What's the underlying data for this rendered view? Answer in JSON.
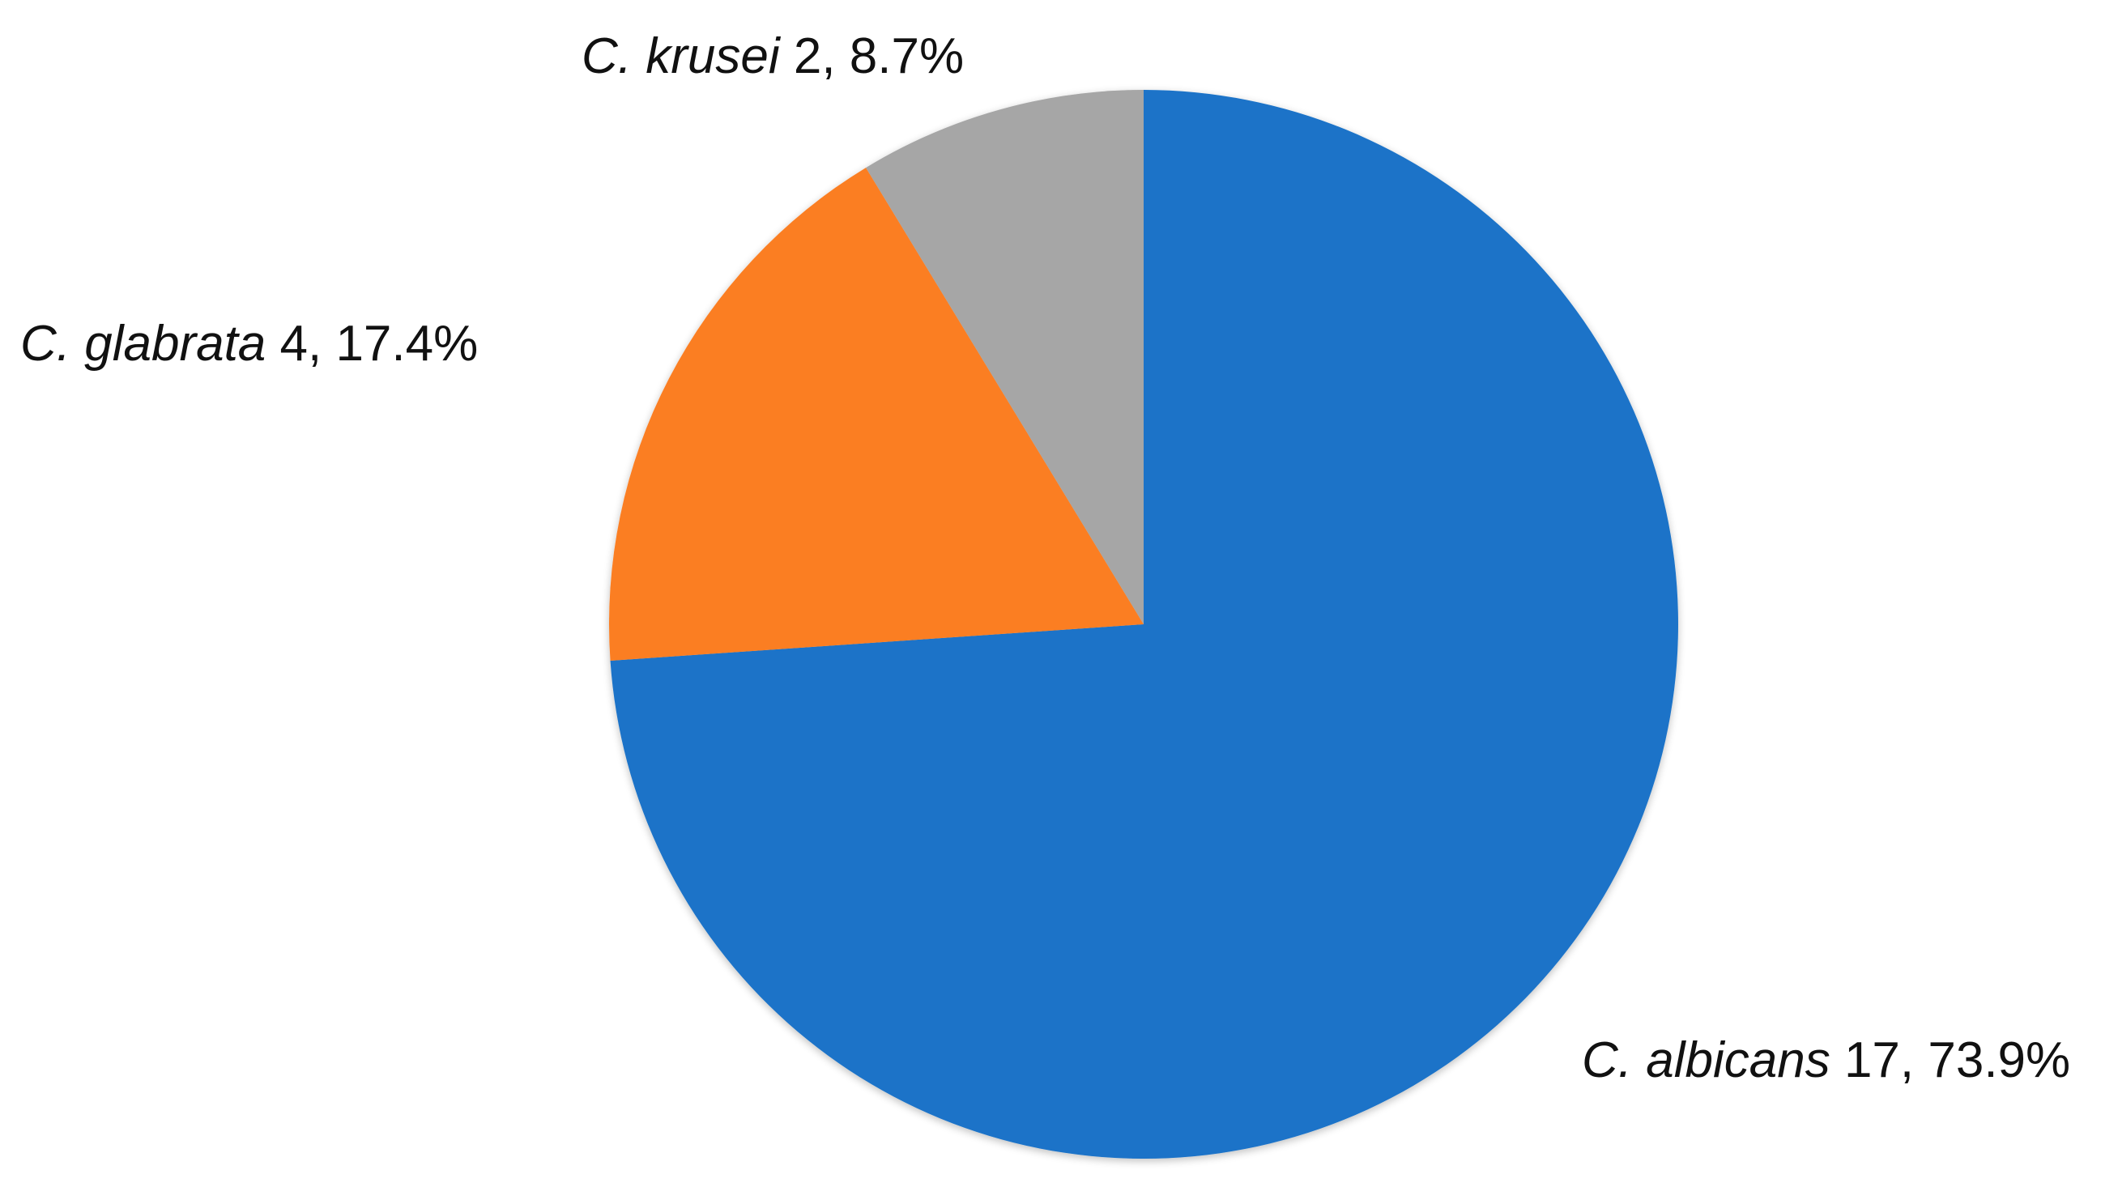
{
  "chart_data": {
    "type": "pie",
    "title": "",
    "slices": [
      {
        "species": "C. albicans",
        "count": 17,
        "count_text": "17",
        "percent_text": "73.9%",
        "color": "#1a73c8"
      },
      {
        "species": "C. glabrata",
        "count": 4,
        "count_text": "4",
        "percent_text": "17.4%",
        "color": "#fb7e23"
      },
      {
        "species": "C. krusei",
        "count": 2,
        "count_text": "2",
        "percent_text": "8.7%",
        "color": "#a6a6a6"
      }
    ],
    "start_angle_deg": 0,
    "direction": "clockwise",
    "legend": "none",
    "label_style": "species (italic), count, percent"
  }
}
